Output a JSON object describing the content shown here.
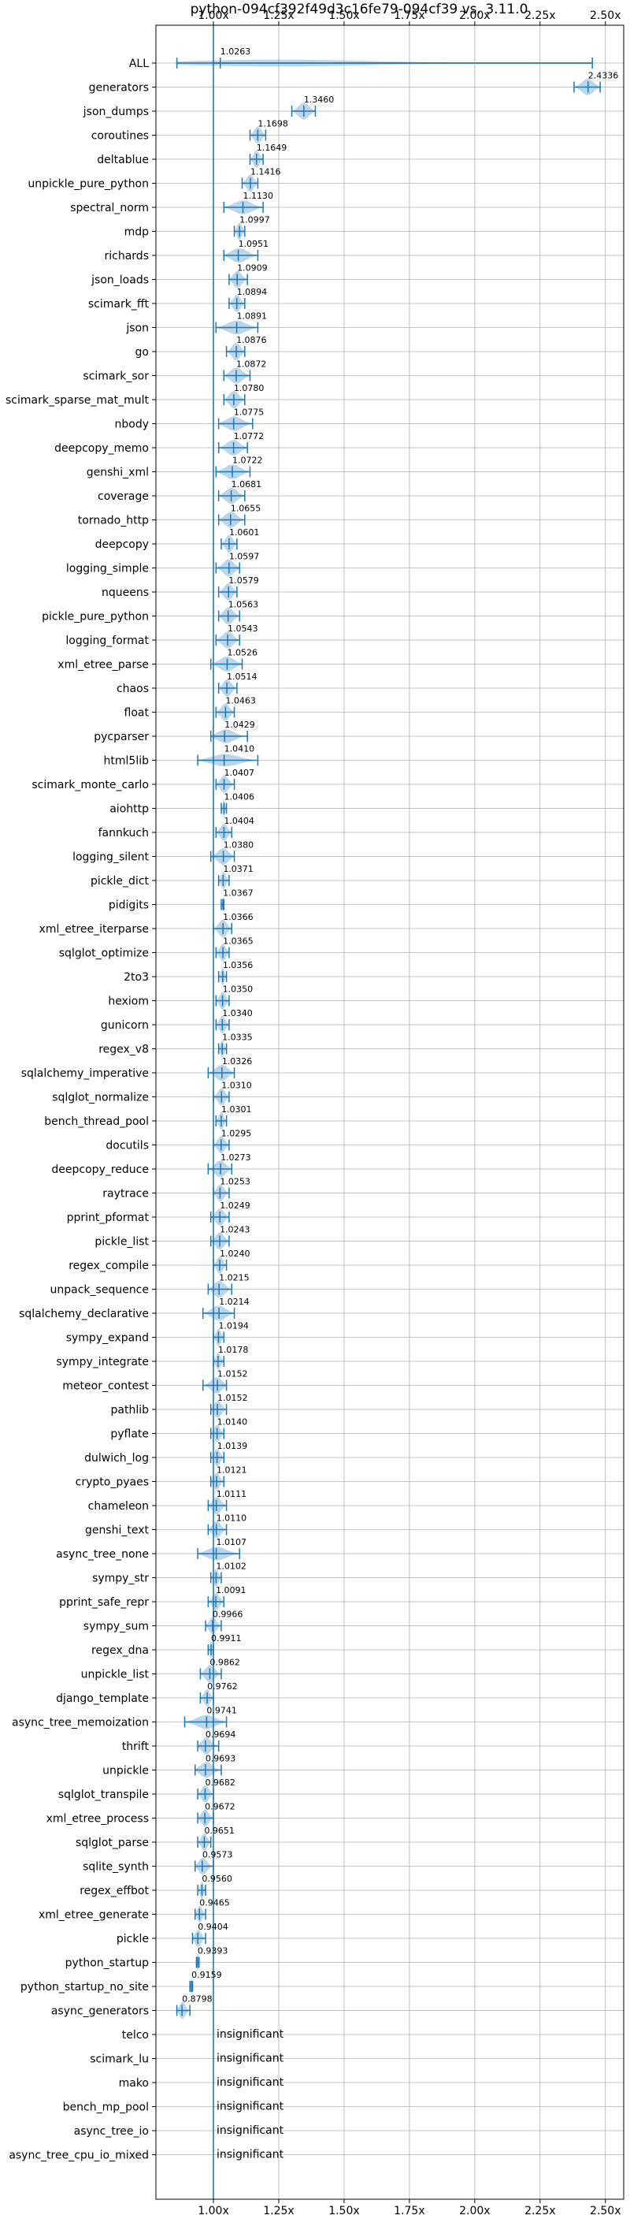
{
  "chart_data": {
    "type": "violin",
    "title": "python-094cf392f49d3c16fe79-094cf39 vs. 3.11.0",
    "xlim": [
      0.78,
      2.57
    ],
    "x_ticks": [
      1.0,
      1.25,
      1.5,
      1.75,
      2.0,
      2.25,
      2.5
    ],
    "x_tick_labels": [
      "1.00x",
      "1.25x",
      "1.50x",
      "1.75x",
      "2.00x",
      "2.25x",
      "2.50x"
    ],
    "grid": true,
    "reference_line": 1.0,
    "insignificant_label": "insignificant",
    "series": [
      {
        "name": "ALL",
        "value_label": "1.0263",
        "value": 1.0263,
        "min": 0.86,
        "max": 2.45
      },
      {
        "name": "generators",
        "value_label": "2.4336",
        "value": 2.4336,
        "min": 2.38,
        "max": 2.48
      },
      {
        "name": "json_dumps",
        "value_label": "1.3460",
        "value": 1.346,
        "min": 1.3,
        "max": 1.39
      },
      {
        "name": "coroutines",
        "value_label": "1.1698",
        "value": 1.1698,
        "min": 1.14,
        "max": 1.2
      },
      {
        "name": "deltablue",
        "value_label": "1.1649",
        "value": 1.1649,
        "min": 1.14,
        "max": 1.19
      },
      {
        "name": "unpickle_pure_python",
        "value_label": "1.1416",
        "value": 1.1416,
        "min": 1.11,
        "max": 1.17
      },
      {
        "name": "spectral_norm",
        "value_label": "1.1130",
        "value": 1.113,
        "min": 1.04,
        "max": 1.19
      },
      {
        "name": "mdp",
        "value_label": "1.0997",
        "value": 1.0997,
        "min": 1.08,
        "max": 1.12
      },
      {
        "name": "richards",
        "value_label": "1.0951",
        "value": 1.0951,
        "min": 1.04,
        "max": 1.17
      },
      {
        "name": "json_loads",
        "value_label": "1.0909",
        "value": 1.0909,
        "min": 1.06,
        "max": 1.13
      },
      {
        "name": "scimark_fft",
        "value_label": "1.0894",
        "value": 1.0894,
        "min": 1.06,
        "max": 1.12
      },
      {
        "name": "json",
        "value_label": "1.0891",
        "value": 1.0891,
        "min": 1.01,
        "max": 1.17
      },
      {
        "name": "go",
        "value_label": "1.0876",
        "value": 1.0876,
        "min": 1.05,
        "max": 1.12
      },
      {
        "name": "scimark_sor",
        "value_label": "1.0872",
        "value": 1.0872,
        "min": 1.04,
        "max": 1.14
      },
      {
        "name": "scimark_sparse_mat_mult",
        "value_label": "1.0780",
        "value": 1.078,
        "min": 1.04,
        "max": 1.12
      },
      {
        "name": "nbody",
        "value_label": "1.0775",
        "value": 1.0775,
        "min": 1.02,
        "max": 1.15
      },
      {
        "name": "deepcopy_memo",
        "value_label": "1.0772",
        "value": 1.0772,
        "min": 1.02,
        "max": 1.13
      },
      {
        "name": "genshi_xml",
        "value_label": "1.0722",
        "value": 1.0722,
        "min": 1.01,
        "max": 1.14
      },
      {
        "name": "coverage",
        "value_label": "1.0681",
        "value": 1.0681,
        "min": 1.02,
        "max": 1.12
      },
      {
        "name": "tornado_http",
        "value_label": "1.0655",
        "value": 1.0655,
        "min": 1.02,
        "max": 1.12
      },
      {
        "name": "deepcopy",
        "value_label": "1.0601",
        "value": 1.0601,
        "min": 1.03,
        "max": 1.09
      },
      {
        "name": "logging_simple",
        "value_label": "1.0597",
        "value": 1.0597,
        "min": 1.01,
        "max": 1.1
      },
      {
        "name": "nqueens",
        "value_label": "1.0579",
        "value": 1.0579,
        "min": 1.02,
        "max": 1.09
      },
      {
        "name": "pickle_pure_python",
        "value_label": "1.0563",
        "value": 1.0563,
        "min": 1.02,
        "max": 1.1
      },
      {
        "name": "logging_format",
        "value_label": "1.0543",
        "value": 1.0543,
        "min": 1.01,
        "max": 1.1
      },
      {
        "name": "xml_etree_parse",
        "value_label": "1.0526",
        "value": 1.0526,
        "min": 0.99,
        "max": 1.11
      },
      {
        "name": "chaos",
        "value_label": "1.0514",
        "value": 1.0514,
        "min": 1.02,
        "max": 1.09
      },
      {
        "name": "float",
        "value_label": "1.0463",
        "value": 1.0463,
        "min": 1.01,
        "max": 1.08
      },
      {
        "name": "pycparser",
        "value_label": "1.0429",
        "value": 1.0429,
        "min": 0.99,
        "max": 1.13
      },
      {
        "name": "html5lib",
        "value_label": "1.0410",
        "value": 1.041,
        "min": 0.94,
        "max": 1.17
      },
      {
        "name": "scimark_monte_carlo",
        "value_label": "1.0407",
        "value": 1.0407,
        "min": 1.01,
        "max": 1.08
      },
      {
        "name": "aiohttp",
        "value_label": "1.0406",
        "value": 1.0406,
        "min": 1.03,
        "max": 1.05
      },
      {
        "name": "fannkuch",
        "value_label": "1.0404",
        "value": 1.0404,
        "min": 1.01,
        "max": 1.07
      },
      {
        "name": "logging_silent",
        "value_label": "1.0380",
        "value": 1.038,
        "min": 0.99,
        "max": 1.08
      },
      {
        "name": "pickle_dict",
        "value_label": "1.0371",
        "value": 1.0371,
        "min": 1.02,
        "max": 1.06
      },
      {
        "name": "pidigits",
        "value_label": "1.0367",
        "value": 1.0367,
        "min": 1.03,
        "max": 1.04
      },
      {
        "name": "xml_etree_iterparse",
        "value_label": "1.0366",
        "value": 1.0366,
        "min": 1.0,
        "max": 1.07
      },
      {
        "name": "sqlglot_optimize",
        "value_label": "1.0365",
        "value": 1.0365,
        "min": 1.01,
        "max": 1.06
      },
      {
        "name": "2to3",
        "value_label": "1.0356",
        "value": 1.0356,
        "min": 1.02,
        "max": 1.05
      },
      {
        "name": "hexiom",
        "value_label": "1.0350",
        "value": 1.035,
        "min": 1.01,
        "max": 1.06
      },
      {
        "name": "gunicorn",
        "value_label": "1.0340",
        "value": 1.034,
        "min": 1.01,
        "max": 1.06
      },
      {
        "name": "regex_v8",
        "value_label": "1.0335",
        "value": 1.0335,
        "min": 1.02,
        "max": 1.05
      },
      {
        "name": "sqlalchemy_imperative",
        "value_label": "1.0326",
        "value": 1.0326,
        "min": 0.98,
        "max": 1.08
      },
      {
        "name": "sqlglot_normalize",
        "value_label": "1.0310",
        "value": 1.031,
        "min": 1.0,
        "max": 1.06
      },
      {
        "name": "bench_thread_pool",
        "value_label": "1.0301",
        "value": 1.0301,
        "min": 1.01,
        "max": 1.05
      },
      {
        "name": "docutils",
        "value_label": "1.0295",
        "value": 1.0295,
        "min": 1.0,
        "max": 1.06
      },
      {
        "name": "deepcopy_reduce",
        "value_label": "1.0273",
        "value": 1.0273,
        "min": 0.98,
        "max": 1.07
      },
      {
        "name": "raytrace",
        "value_label": "1.0253",
        "value": 1.0253,
        "min": 1.0,
        "max": 1.06
      },
      {
        "name": "pprint_pformat",
        "value_label": "1.0249",
        "value": 1.0249,
        "min": 0.99,
        "max": 1.06
      },
      {
        "name": "pickle_list",
        "value_label": "1.0243",
        "value": 1.0243,
        "min": 0.99,
        "max": 1.06
      },
      {
        "name": "regex_compile",
        "value_label": "1.0240",
        "value": 1.024,
        "min": 1.0,
        "max": 1.05
      },
      {
        "name": "unpack_sequence",
        "value_label": "1.0215",
        "value": 1.0215,
        "min": 0.98,
        "max": 1.07
      },
      {
        "name": "sqlalchemy_declarative",
        "value_label": "1.0214",
        "value": 1.0214,
        "min": 0.96,
        "max": 1.08
      },
      {
        "name": "sympy_expand",
        "value_label": "1.0194",
        "value": 1.0194,
        "min": 1.0,
        "max": 1.04
      },
      {
        "name": "sympy_integrate",
        "value_label": "1.0178",
        "value": 1.0178,
        "min": 1.0,
        "max": 1.04
      },
      {
        "name": "meteor_contest",
        "value_label": "1.0152",
        "value": 1.0152,
        "min": 0.96,
        "max": 1.05
      },
      {
        "name": "pathlib",
        "value_label": "1.0152",
        "value": 1.0152,
        "min": 0.99,
        "max": 1.05
      },
      {
        "name": "pyflate",
        "value_label": "1.0140",
        "value": 1.014,
        "min": 0.99,
        "max": 1.04
      },
      {
        "name": "dulwich_log",
        "value_label": "1.0139",
        "value": 1.0139,
        "min": 0.99,
        "max": 1.04
      },
      {
        "name": "crypto_pyaes",
        "value_label": "1.0121",
        "value": 1.0121,
        "min": 0.99,
        "max": 1.04
      },
      {
        "name": "chameleon",
        "value_label": "1.0111",
        "value": 1.0111,
        "min": 0.98,
        "max": 1.05
      },
      {
        "name": "genshi_text",
        "value_label": "1.0110",
        "value": 1.011,
        "min": 0.98,
        "max": 1.05
      },
      {
        "name": "async_tree_none",
        "value_label": "1.0107",
        "value": 1.0107,
        "min": 0.94,
        "max": 1.1
      },
      {
        "name": "sympy_str",
        "value_label": "1.0102",
        "value": 1.0102,
        "min": 0.99,
        "max": 1.03
      },
      {
        "name": "pprint_safe_repr",
        "value_label": "1.0091",
        "value": 1.0091,
        "min": 0.98,
        "max": 1.04
      },
      {
        "name": "sympy_sum",
        "value_label": "0.9966",
        "value": 0.9966,
        "min": 0.97,
        "max": 1.03
      },
      {
        "name": "regex_dna",
        "value_label": "0.9911",
        "value": 0.9911,
        "min": 0.98,
        "max": 1.0
      },
      {
        "name": "unpickle_list",
        "value_label": "0.9862",
        "value": 0.9862,
        "min": 0.95,
        "max": 1.03
      },
      {
        "name": "django_template",
        "value_label": "0.9762",
        "value": 0.9762,
        "min": 0.95,
        "max": 1.0
      },
      {
        "name": "async_tree_memoization",
        "value_label": "0.9741",
        "value": 0.9741,
        "min": 0.89,
        "max": 1.05
      },
      {
        "name": "thrift",
        "value_label": "0.9694",
        "value": 0.9694,
        "min": 0.94,
        "max": 1.02
      },
      {
        "name": "unpickle",
        "value_label": "0.9693",
        "value": 0.9693,
        "min": 0.93,
        "max": 1.03
      },
      {
        "name": "sqlglot_transpile",
        "value_label": "0.9682",
        "value": 0.9682,
        "min": 0.94,
        "max": 1.0
      },
      {
        "name": "xml_etree_process",
        "value_label": "0.9672",
        "value": 0.9672,
        "min": 0.94,
        "max": 1.0
      },
      {
        "name": "sqlglot_parse",
        "value_label": "0.9651",
        "value": 0.9651,
        "min": 0.94,
        "max": 0.99
      },
      {
        "name": "sqlite_synth",
        "value_label": "0.9573",
        "value": 0.9573,
        "min": 0.93,
        "max": 1.0
      },
      {
        "name": "regex_effbot",
        "value_label": "0.9560",
        "value": 0.956,
        "min": 0.94,
        "max": 0.97
      },
      {
        "name": "xml_etree_generate",
        "value_label": "0.9465",
        "value": 0.9465,
        "min": 0.93,
        "max": 0.97
      },
      {
        "name": "pickle",
        "value_label": "0.9404",
        "value": 0.9404,
        "min": 0.92,
        "max": 0.97
      },
      {
        "name": "python_startup",
        "value_label": "0.9393",
        "value": 0.9393,
        "min": 0.935,
        "max": 0.945
      },
      {
        "name": "python_startup_no_site",
        "value_label": "0.9159",
        "value": 0.9159,
        "min": 0.91,
        "max": 0.92
      },
      {
        "name": "async_generators",
        "value_label": "0.8798",
        "value": 0.8798,
        "min": 0.86,
        "max": 0.91
      },
      {
        "name": "telco",
        "insignificant": true
      },
      {
        "name": "scimark_lu",
        "insignificant": true
      },
      {
        "name": "mako",
        "insignificant": true
      },
      {
        "name": "bench_mp_pool",
        "insignificant": true
      },
      {
        "name": "async_tree_io",
        "insignificant": true
      },
      {
        "name": "async_tree_cpu_io_mixed",
        "insignificant": true
      }
    ]
  }
}
